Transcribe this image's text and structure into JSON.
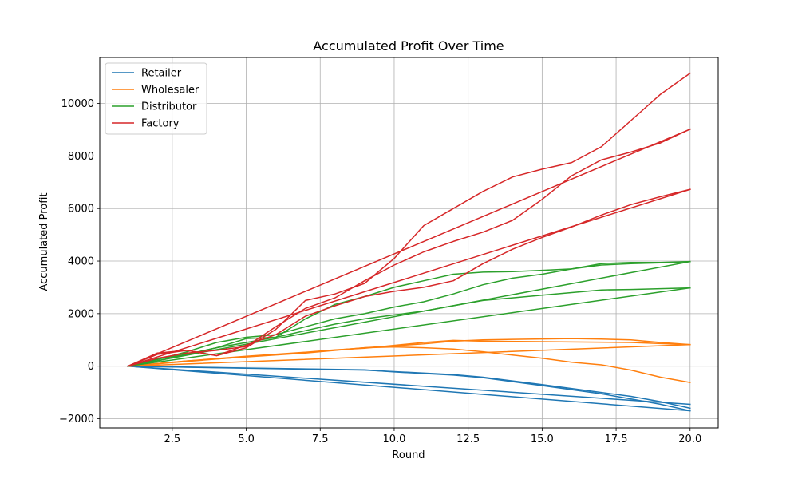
{
  "chart_data": {
    "type": "line",
    "title": "Accumulated Profit Over Time",
    "xlabel": "Round",
    "ylabel": "Accumulated Profit",
    "xlim": [
      0.05,
      20.95
    ],
    "ylim": [
      -2350,
      11750
    ],
    "xticks": [
      2.5,
      5.0,
      7.5,
      10.0,
      12.5,
      15.0,
      17.5,
      20.0
    ],
    "xtick_labels": [
      "2.5",
      "5.0",
      "7.5",
      "10.0",
      "12.5",
      "15.0",
      "17.5",
      "20.0"
    ],
    "yticks": [
      -2000,
      0,
      2000,
      4000,
      6000,
      8000,
      10000
    ],
    "ytick_labels": [
      "−2000",
      "0",
      "2000",
      "4000",
      "6000",
      "8000",
      "10000"
    ],
    "grid": true,
    "legend_position": "top-left",
    "legend": [
      {
        "label": "Retailer",
        "color": "#1f77b4"
      },
      {
        "label": "Wholesaler",
        "color": "#ff7f0e"
      },
      {
        "label": "Distributor",
        "color": "#2ca02c"
      },
      {
        "label": "Factory",
        "color": "#d62728"
      }
    ],
    "series": [
      {
        "role": "Retailer",
        "color": "#1f77b4",
        "points": [
          [
            1,
            0
          ],
          [
            20,
            -1700
          ]
        ]
      },
      {
        "role": "Retailer",
        "color": "#1f77b4",
        "points": [
          [
            1,
            0
          ],
          [
            20,
            -1450
          ]
        ]
      },
      {
        "role": "Retailer",
        "color": "#1f77b4",
        "points": [
          [
            1,
            0
          ],
          [
            5,
            -80
          ],
          [
            9,
            -150
          ],
          [
            12,
            -320
          ],
          [
            13,
            -420
          ],
          [
            15,
            -700
          ],
          [
            17,
            -1000
          ],
          [
            18,
            -1150
          ],
          [
            19,
            -1350
          ],
          [
            20,
            -1600
          ]
        ]
      },
      {
        "role": "Retailer",
        "color": "#1f77b4",
        "points": [
          [
            1,
            0
          ],
          [
            5,
            -70
          ],
          [
            9,
            -140
          ],
          [
            10,
            -220
          ],
          [
            12,
            -340
          ],
          [
            13,
            -440
          ],
          [
            15,
            -740
          ],
          [
            17,
            -1050
          ],
          [
            18,
            -1250
          ],
          [
            19,
            -1450
          ],
          [
            20,
            -1700
          ]
        ]
      },
      {
        "role": "Wholesaler",
        "color": "#ff7f0e",
        "points": [
          [
            1,
            0
          ],
          [
            20,
            820
          ]
        ]
      },
      {
        "role": "Wholesaler",
        "color": "#ff7f0e",
        "points": [
          [
            1,
            0
          ],
          [
            3,
            200
          ],
          [
            5,
            350
          ],
          [
            7,
            500
          ],
          [
            9,
            700
          ],
          [
            11,
            850
          ],
          [
            12,
            950
          ],
          [
            13,
            1000
          ],
          [
            14,
            1020
          ],
          [
            16,
            1050
          ],
          [
            17,
            1030
          ],
          [
            18,
            1000
          ],
          [
            19,
            900
          ],
          [
            20,
            820
          ]
        ]
      },
      {
        "role": "Wholesaler",
        "color": "#ff7f0e",
        "points": [
          [
            1,
            0
          ],
          [
            3,
            200
          ],
          [
            5,
            380
          ],
          [
            7,
            530
          ],
          [
            8,
            620
          ],
          [
            9,
            680
          ],
          [
            11,
            900
          ],
          [
            12,
            980
          ],
          [
            13,
            950
          ],
          [
            16,
            920
          ],
          [
            18,
            900
          ],
          [
            20,
            820
          ]
        ]
      },
      {
        "role": "Wholesaler",
        "color": "#ff7f0e",
        "points": [
          [
            1,
            0
          ],
          [
            3,
            180
          ],
          [
            5,
            360
          ],
          [
            7,
            520
          ],
          [
            9,
            700
          ],
          [
            10,
            730
          ],
          [
            11,
            700
          ],
          [
            12,
            650
          ],
          [
            13,
            550
          ],
          [
            14,
            420
          ],
          [
            15,
            300
          ],
          [
            16,
            150
          ],
          [
            17,
            50
          ],
          [
            18,
            -150
          ],
          [
            19,
            -420
          ],
          [
            20,
            -620
          ]
        ]
      },
      {
        "role": "Distributor",
        "color": "#2ca02c",
        "points": [
          [
            1,
            0
          ],
          [
            20,
            3980
          ]
        ]
      },
      {
        "role": "Distributor",
        "color": "#2ca02c",
        "points": [
          [
            1,
            0
          ],
          [
            20,
            2980
          ]
        ]
      },
      {
        "role": "Distributor",
        "color": "#2ca02c",
        "points": [
          [
            1,
            0
          ],
          [
            2,
            250
          ],
          [
            3,
            550
          ],
          [
            4,
            900
          ],
          [
            5,
            1100
          ],
          [
            6,
            1200
          ],
          [
            7,
            1500
          ],
          [
            8,
            1800
          ],
          [
            9,
            2000
          ],
          [
            10,
            2250
          ],
          [
            11,
            2450
          ],
          [
            12,
            2750
          ],
          [
            13,
            3100
          ],
          [
            14,
            3350
          ],
          [
            15,
            3500
          ],
          [
            16,
            3700
          ],
          [
            17,
            3900
          ],
          [
            18,
            3950
          ],
          [
            19,
            3950
          ],
          [
            20,
            3980
          ]
        ]
      },
      {
        "role": "Distributor",
        "color": "#2ca02c",
        "points": [
          [
            1,
            0
          ],
          [
            2,
            200
          ],
          [
            3,
            450
          ],
          [
            4,
            700
          ],
          [
            5,
            900
          ],
          [
            6,
            1100
          ],
          [
            7,
            1350
          ],
          [
            8,
            1600
          ],
          [
            9,
            1800
          ],
          [
            10,
            1950
          ],
          [
            11,
            2100
          ],
          [
            12,
            2300
          ],
          [
            13,
            2500
          ],
          [
            14,
            2600
          ],
          [
            15,
            2700
          ],
          [
            16,
            2800
          ],
          [
            17,
            2900
          ],
          [
            18,
            2920
          ],
          [
            19,
            2950
          ],
          [
            20,
            2980
          ]
        ]
      },
      {
        "role": "Distributor",
        "color": "#2ca02c",
        "points": [
          [
            1,
            0
          ],
          [
            2,
            280
          ],
          [
            3,
            450
          ],
          [
            4,
            700
          ],
          [
            5,
            1050
          ],
          [
            6,
            1100
          ],
          [
            7,
            1800
          ],
          [
            8,
            2350
          ],
          [
            9,
            2650
          ],
          [
            10,
            3000
          ],
          [
            11,
            3250
          ],
          [
            12,
            3500
          ],
          [
            13,
            3580
          ],
          [
            14,
            3600
          ],
          [
            15,
            3650
          ],
          [
            16,
            3700
          ],
          [
            17,
            3850
          ],
          [
            18,
            3900
          ],
          [
            19,
            3930
          ],
          [
            20,
            3980
          ]
        ]
      },
      {
        "role": "Factory",
        "color": "#d62728",
        "points": [
          [
            1,
            0
          ],
          [
            20,
            9020
          ]
        ]
      },
      {
        "role": "Factory",
        "color": "#d62728",
        "points": [
          [
            1,
            0
          ],
          [
            20,
            6730
          ]
        ]
      },
      {
        "role": "Factory",
        "color": "#d62728",
        "points": [
          [
            1,
            0
          ],
          [
            2,
            500
          ],
          [
            3,
            600
          ],
          [
            4,
            400
          ],
          [
            5,
            700
          ],
          [
            6,
            1400
          ],
          [
            7,
            2500
          ],
          [
            8,
            2750
          ],
          [
            9,
            3150
          ],
          [
            10,
            4100
          ],
          [
            11,
            5350
          ],
          [
            12,
            6000
          ],
          [
            13,
            6650
          ],
          [
            14,
            7200
          ],
          [
            15,
            7500
          ],
          [
            16,
            7750
          ],
          [
            17,
            8350
          ],
          [
            18,
            9350
          ],
          [
            19,
            10350
          ],
          [
            20,
            11150
          ]
        ]
      },
      {
        "role": "Factory",
        "color": "#d62728",
        "points": [
          [
            1,
            0
          ],
          [
            2,
            300
          ],
          [
            3,
            500
          ],
          [
            4,
            600
          ],
          [
            5,
            750
          ],
          [
            6,
            1500
          ],
          [
            7,
            2200
          ],
          [
            8,
            2600
          ],
          [
            9,
            3250
          ],
          [
            10,
            3850
          ],
          [
            11,
            4350
          ],
          [
            12,
            4750
          ],
          [
            13,
            5100
          ],
          [
            14,
            5550
          ],
          [
            15,
            6350
          ],
          [
            16,
            7250
          ],
          [
            17,
            7850
          ],
          [
            18,
            8150
          ],
          [
            19,
            8500
          ],
          [
            20,
            9020
          ]
        ]
      },
      {
        "role": "Factory",
        "color": "#d62728",
        "points": [
          [
            1,
            0
          ],
          [
            2,
            450
          ],
          [
            3,
            600
          ],
          [
            4,
            400
          ],
          [
            5,
            800
          ],
          [
            6,
            1200
          ],
          [
            7,
            1900
          ],
          [
            8,
            2300
          ],
          [
            9,
            2650
          ],
          [
            10,
            2850
          ],
          [
            11,
            3000
          ],
          [
            12,
            3250
          ],
          [
            13,
            3900
          ],
          [
            14,
            4450
          ],
          [
            15,
            4900
          ],
          [
            16,
            5300
          ],
          [
            17,
            5750
          ],
          [
            18,
            6150
          ],
          [
            19,
            6450
          ],
          [
            20,
            6730
          ]
        ]
      }
    ]
  }
}
